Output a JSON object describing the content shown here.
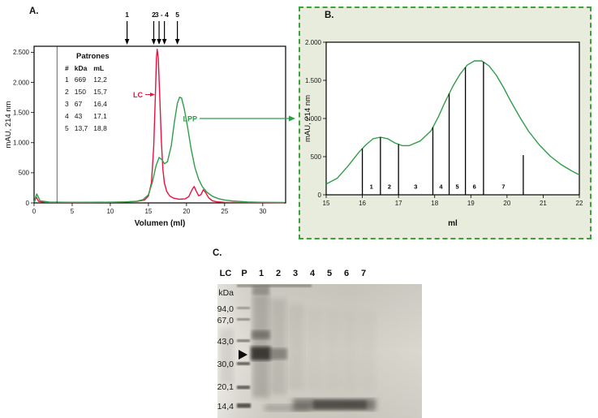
{
  "figure": {
    "panelA_label": "A.",
    "panelB_label": "B.",
    "panelC_label": "C."
  },
  "chart_data": [
    {
      "type": "line",
      "panel": "A",
      "title": "",
      "xlabel": "Volumen (ml)",
      "ylabel": "mAU, 214 nm",
      "xlim": [
        0,
        33
      ],
      "ylim": [
        0,
        2600
      ],
      "grid": false,
      "xticks": {
        "values": [
          0,
          5,
          10,
          15,
          20,
          25,
          30
        ],
        "labels": [
          "0",
          "5",
          "10",
          "15",
          "20",
          "25",
          "30"
        ]
      },
      "yticks": {
        "values": [
          0,
          500,
          1000,
          1500,
          2000,
          2500
        ],
        "labels": [
          "0",
          "500",
          "1.000",
          "1.500",
          "2.000",
          "2.500"
        ]
      },
      "marker_line_ml": 3,
      "legend": {
        "title": "Patrones",
        "headers": [
          "#",
          "kDa",
          "mL"
        ],
        "rows": [
          [
            "1",
            "669",
            "12,2"
          ],
          [
            "2",
            "150",
            "15,7"
          ],
          [
            "3",
            "67",
            "16,4"
          ],
          [
            "4",
            "43",
            "17,1"
          ],
          [
            "5",
            "13,7",
            "18,8"
          ]
        ]
      },
      "top_arrows": [
        {
          "label": "1",
          "ml": [
            12.2
          ]
        },
        {
          "label": "2",
          "ml": [
            15.7
          ]
        },
        {
          "label": "3 - 4",
          "ml": [
            16.4,
            17.1
          ]
        },
        {
          "label": "5",
          "ml": [
            18.8
          ]
        }
      ],
      "series": [
        {
          "name": "LC",
          "color": "#e8123f",
          "points": [
            [
              0,
              8
            ],
            [
              0.3,
              95
            ],
            [
              0.6,
              25
            ],
            [
              1.5,
              10
            ],
            [
              5,
              8
            ],
            [
              10,
              10
            ],
            [
              12,
              16
            ],
            [
              13.5,
              26
            ],
            [
              14.5,
              48
            ],
            [
              15,
              115
            ],
            [
              15.4,
              340
            ],
            [
              15.7,
              950
            ],
            [
              15.9,
              1750
            ],
            [
              16.05,
              2400
            ],
            [
              16.15,
              2550
            ],
            [
              16.3,
              2400
            ],
            [
              16.5,
              1720
            ],
            [
              16.7,
              1020
            ],
            [
              16.9,
              550
            ],
            [
              17.1,
              330
            ],
            [
              17.4,
              190
            ],
            [
              17.8,
              115
            ],
            [
              18.3,
              80
            ],
            [
              19,
              62
            ],
            [
              19.8,
              66
            ],
            [
              20.3,
              105
            ],
            [
              20.7,
              215
            ],
            [
              21,
              272
            ],
            [
              21.3,
              190
            ],
            [
              21.6,
              118
            ],
            [
              21.9,
              138
            ],
            [
              22.2,
              218
            ],
            [
              22.5,
              172
            ],
            [
              22.9,
              85
            ],
            [
              23.4,
              35
            ],
            [
              24,
              18
            ],
            [
              25,
              10
            ],
            [
              27,
              6
            ],
            [
              30,
              5
            ],
            [
              32.8,
              4
            ]
          ]
        },
        {
          "name": "LPP",
          "color": "#2f9e48",
          "points": [
            [
              0,
              10
            ],
            [
              0.35,
              150
            ],
            [
              0.8,
              35
            ],
            [
              2,
              14
            ],
            [
              5,
              10
            ],
            [
              10,
              12
            ],
            [
              12,
              16
            ],
            [
              13.5,
              28
            ],
            [
              14.3,
              55
            ],
            [
              15,
              135
            ],
            [
              15.5,
              335
            ],
            [
              16,
              615
            ],
            [
              16.4,
              755
            ],
            [
              16.8,
              715
            ],
            [
              17.1,
              650
            ],
            [
              17.5,
              685
            ],
            [
              18,
              950
            ],
            [
              18.4,
              1330
            ],
            [
              18.8,
              1655
            ],
            [
              19.1,
              1755
            ],
            [
              19.35,
              1740
            ],
            [
              19.7,
              1560
            ],
            [
              20.1,
              1290
            ],
            [
              20.6,
              900
            ],
            [
              21.1,
              590
            ],
            [
              21.6,
              390
            ],
            [
              22.1,
              265
            ],
            [
              22.7,
              175
            ],
            [
              23.4,
              110
            ],
            [
              24.2,
              70
            ],
            [
              25,
              48
            ],
            [
              26,
              32
            ],
            [
              28,
              16
            ],
            [
              30,
              10
            ],
            [
              32.8,
              7
            ]
          ]
        }
      ],
      "annotations": [
        {
          "text": "LC",
          "color": "#e8123f"
        },
        {
          "text": "LPP",
          "color": "#2f9e48",
          "arrow_to_panel": "B"
        }
      ]
    },
    {
      "type": "line",
      "panel": "B",
      "title": "",
      "xlabel": "ml",
      "ylabel": "mAU, 214 nm",
      "xlim": [
        15,
        22
      ],
      "ylim": [
        0,
        2000
      ],
      "grid": false,
      "xticks": {
        "values": [
          15,
          16,
          17,
          18,
          19,
          20,
          21,
          22
        ],
        "labels": [
          "15",
          "16",
          "17",
          "18",
          "19",
          "20",
          "21",
          "22"
        ]
      },
      "yticks": {
        "values": [
          0,
          500,
          1000,
          1500,
          2000
        ],
        "labels": [
          "0",
          "500",
          "1.000",
          "1.500",
          "2.000"
        ]
      },
      "series": [
        {
          "name": "LPP",
          "color": "#2f9e48",
          "points": [
            [
              15,
              140
            ],
            [
              15.3,
              215
            ],
            [
              15.6,
              375
            ],
            [
              15.9,
              555
            ],
            [
              16.1,
              655
            ],
            [
              16.3,
              735
            ],
            [
              16.5,
              755
            ],
            [
              16.7,
              735
            ],
            [
              16.9,
              680
            ],
            [
              17.1,
              645
            ],
            [
              17.3,
              645
            ],
            [
              17.6,
              705
            ],
            [
              17.9,
              840
            ],
            [
              18.1,
              1020
            ],
            [
              18.3,
              1230
            ],
            [
              18.5,
              1420
            ],
            [
              18.7,
              1580
            ],
            [
              18.9,
              1700
            ],
            [
              19.1,
              1755
            ],
            [
              19.3,
              1755
            ],
            [
              19.5,
              1690
            ],
            [
              19.7,
              1570
            ],
            [
              19.9,
              1410
            ],
            [
              20.1,
              1230
            ],
            [
              20.35,
              1020
            ],
            [
              20.6,
              830
            ],
            [
              20.9,
              650
            ],
            [
              21.2,
              505
            ],
            [
              21.5,
              395
            ],
            [
              21.8,
              310
            ],
            [
              22,
              262
            ]
          ]
        }
      ],
      "fractions": {
        "boundaries_ml": [
          16.0,
          16.5,
          17.0,
          17.95,
          18.4,
          18.85,
          19.35,
          20.45
        ],
        "last_boundary_height": 520,
        "labels": [
          "1",
          "2",
          "3",
          "4",
          "5",
          "6",
          "7"
        ]
      }
    }
  ],
  "gel": {
    "lane_labels": [
      "LC",
      "P",
      "1",
      "2",
      "3",
      "4",
      "5",
      "6",
      "7"
    ],
    "kda_header": "kDa",
    "markers": [
      "94,0",
      "67,0",
      "43,0",
      "30,0",
      "20,1",
      "14,4"
    ]
  }
}
